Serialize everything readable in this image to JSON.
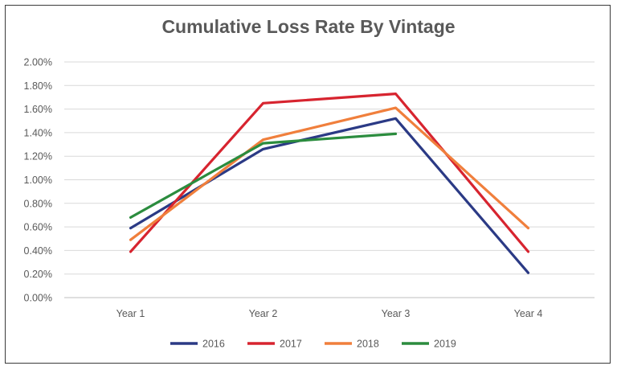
{
  "chart_data": {
    "type": "line",
    "title": "Cumulative Loss Rate By Vintage",
    "categories": [
      "Year 1",
      "Year 2",
      "Year 3",
      "Year 4"
    ],
    "ylim": [
      0,
      0.02
    ],
    "yticks": [
      "0.00%",
      "0.20%",
      "0.40%",
      "0.60%",
      "0.80%",
      "1.00%",
      "1.20%",
      "1.40%",
      "1.60%",
      "1.80%",
      "2.00%"
    ],
    "grid": true,
    "legend_position": "bottom",
    "series": [
      {
        "name": "2016",
        "color": "#2b3a85",
        "values": [
          0.0059,
          0.0126,
          0.0152,
          0.0021
        ]
      },
      {
        "name": "2017",
        "color": "#d7242f",
        "values": [
          0.0039,
          0.0165,
          0.0173,
          0.0039
        ]
      },
      {
        "name": "2018",
        "color": "#f07f3c",
        "values": [
          0.0049,
          0.0134,
          0.0161,
          0.0059
        ]
      },
      {
        "name": "2019",
        "color": "#2b8c3e",
        "values": [
          0.0068,
          0.0131,
          0.0139,
          null
        ]
      }
    ]
  }
}
